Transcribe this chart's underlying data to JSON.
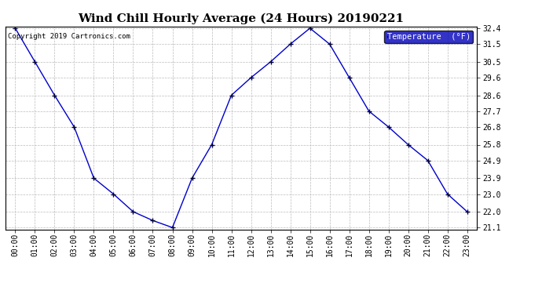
{
  "title": "Wind Chill Hourly Average (24 Hours) 20190221",
  "copyright": "Copyright 2019 Cartronics.com",
  "legend_label": "Temperature  (°F)",
  "x_labels": [
    "00:00",
    "01:00",
    "02:00",
    "03:00",
    "04:00",
    "05:00",
    "06:00",
    "07:00",
    "08:00",
    "09:00",
    "10:00",
    "11:00",
    "12:00",
    "13:00",
    "14:00",
    "15:00",
    "16:00",
    "17:00",
    "18:00",
    "19:00",
    "20:00",
    "21:00",
    "22:00",
    "23:00"
  ],
  "y_values": [
    32.4,
    30.5,
    28.6,
    26.8,
    23.9,
    23.0,
    22.0,
    21.5,
    21.1,
    23.9,
    25.8,
    28.6,
    29.6,
    30.5,
    31.5,
    32.4,
    31.5,
    29.6,
    27.7,
    26.8,
    25.8,
    24.9,
    23.0,
    22.0
  ],
  "ylim_min": 21.1,
  "ylim_max": 32.4,
  "y_ticks": [
    21.1,
    22.0,
    23.0,
    23.9,
    24.9,
    25.8,
    26.8,
    27.7,
    28.6,
    29.6,
    30.5,
    31.5,
    32.4
  ],
  "line_color": "#0000cc",
  "marker_color": "#000033",
  "bg_color": "#ffffff",
  "plot_bg_color": "#ffffff",
  "grid_color": "#bbbbbb",
  "title_fontsize": 11,
  "tick_fontsize": 7,
  "copyright_fontsize": 6.5,
  "legend_fontsize": 7.5,
  "legend_bg": "#0000bb",
  "legend_text_color": "#ffffff"
}
